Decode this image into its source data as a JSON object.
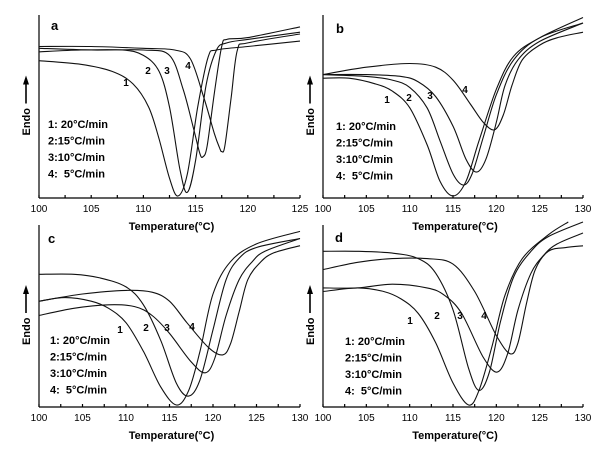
{
  "chart_data": [
    {
      "type": "line",
      "panel": "a",
      "xlabel": "Temperature(°C)",
      "ylabel": "Endo",
      "xlim": [
        100,
        125
      ],
      "xticks": [
        "100",
        "105",
        "110",
        "115",
        "120",
        "125"
      ],
      "ylim": [
        0,
        100
      ],
      "legend": [
        "1: 20°C/min",
        "2:15°C/min",
        "3:10°C/min",
        "4:  5°C/min"
      ],
      "legend_placement": "left",
      "series": [
        {
          "name": "1",
          "label": "1",
          "peak_T": 113.3,
          "x": [
            100,
            104,
            107,
            109,
            110.5,
            111.5,
            112.5,
            113.3,
            114.2,
            115.2,
            116.2,
            117,
            120,
            125
          ],
          "y": [
            76,
            74,
            70,
            63,
            50,
            32,
            10,
            0,
            12,
            50,
            78,
            82,
            84,
            87
          ]
        },
        {
          "name": "2",
          "label": "2",
          "peak_T": 114.2,
          "x": [
            100,
            104,
            108,
            110,
            111.5,
            112.5,
            113.5,
            114.2,
            115,
            116,
            117,
            118,
            120,
            125
          ],
          "y": [
            81,
            82,
            82,
            79,
            70,
            50,
            15,
            2,
            20,
            62,
            82,
            86,
            88,
            92
          ]
        },
        {
          "name": "3",
          "label": "3",
          "peak_T": 115.7,
          "x": [
            100,
            105,
            110,
            112.5,
            113.8,
            114.8,
            115.4,
            115.7,
            116.1,
            116.8,
            117.5,
            118,
            120,
            125
          ],
          "y": [
            83,
            82,
            82,
            79,
            60,
            38,
            24,
            22,
            28,
            58,
            84,
            88,
            89,
            95
          ]
        },
        {
          "name": "4",
          "label": "4",
          "peak_T": 117.5,
          "x": [
            100,
            105,
            110,
            113,
            114.5,
            115.8,
            116.8,
            117.3,
            117.5,
            117.8,
            118.4,
            119,
            120,
            125
          ],
          "y": [
            84,
            84,
            83,
            82,
            77,
            55,
            35,
            27,
            25,
            28,
            55,
            82,
            86,
            91
          ]
        }
      ]
    },
    {
      "type": "line",
      "panel": "b",
      "xlabel": "Temperature(°C)",
      "ylabel": "Endo",
      "xlim": [
        100,
        130
      ],
      "xticks": [
        "100",
        "105",
        "110",
        "115",
        "120",
        "125",
        "130"
      ],
      "ylim": [
        0,
        100
      ],
      "legend": [
        "1: 20°C/min",
        "2:15°C/min",
        "3:10°C/min",
        "4:  5°C/min"
      ],
      "legend_placement": "left",
      "series": [
        {
          "name": "1",
          "label": "1",
          "peak_T": 115,
          "x": [
            100,
            103,
            106,
            108,
            110,
            112,
            113.5,
            115,
            116.5,
            118,
            120,
            122,
            125,
            130
          ],
          "y": [
            64,
            64,
            61,
            57,
            48,
            28,
            8,
            0,
            8,
            30,
            58,
            76,
            86,
            97
          ]
        },
        {
          "name": "2",
          "label": "2",
          "peak_T": 116.2,
          "x": [
            100,
            105,
            108,
            110,
            112,
            113.5,
            115,
            116.2,
            117.2,
            118.5,
            120,
            122,
            125,
            130
          ],
          "y": [
            66,
            65,
            63,
            59,
            48,
            30,
            12,
            6,
            12,
            32,
            55,
            74,
            86,
            94
          ]
        },
        {
          "name": "3",
          "label": "3",
          "peak_T": 117.7,
          "x": [
            100,
            105,
            109,
            111,
            113,
            115,
            116.5,
            117.7,
            118.8,
            120,
            121,
            122.5,
            125,
            130
          ],
          "y": [
            66,
            66,
            65,
            62,
            54,
            38,
            20,
            13,
            20,
            40,
            60,
            74,
            84,
            94
          ]
        },
        {
          "name": "4",
          "label": "4",
          "peak_T": 119.8,
          "x": [
            100,
            105,
            110,
            113,
            115,
            117,
            118.5,
            119.8,
            120.8,
            121.8,
            123,
            125,
            127,
            130
          ],
          "y": [
            66,
            70,
            72,
            70,
            63,
            50,
            40,
            36,
            44,
            60,
            74,
            82,
            86,
            89
          ]
        }
      ]
    },
    {
      "type": "line",
      "panel": "c",
      "xlabel": "Temperature(°C)",
      "ylabel": "Endo",
      "xlim": [
        100,
        130
      ],
      "xticks": [
        "100",
        "105",
        "110",
        "115",
        "120",
        "125",
        "130"
      ],
      "ylim": [
        0,
        100
      ],
      "legend": [
        "1: 20°C/min",
        "2:15°C/min",
        "3:10°C/min",
        "4:  5°C/min"
      ],
      "legend_placement": "left",
      "series": [
        {
          "name": "1",
          "label": "1",
          "peak_T": 115.8,
          "x": [
            100,
            103,
            106,
            108,
            110,
            112,
            114,
            115.8,
            117.2,
            118.5,
            120,
            122,
            125,
            130
          ],
          "y": [
            58,
            60,
            58,
            54,
            46,
            30,
            10,
            0,
            8,
            30,
            62,
            80,
            90,
            97
          ]
        },
        {
          "name": "2",
          "label": "2",
          "peak_T": 117.2,
          "x": [
            100,
            104,
            107,
            110,
            112,
            114,
            115.8,
            117.2,
            118.5,
            120,
            121.5,
            123,
            125,
            130
          ],
          "y": [
            73,
            73,
            71,
            66,
            56,
            36,
            12,
            5,
            14,
            42,
            70,
            82,
            88,
            93
          ]
        },
        {
          "name": "3",
          "label": "3",
          "peak_T": 119.1,
          "x": [
            100,
            104,
            108,
            111,
            113,
            115,
            117.5,
            119.1,
            120.2,
            121.5,
            123,
            124.5,
            126,
            130
          ],
          "y": [
            50,
            54,
            56,
            55,
            50,
            40,
            24,
            18,
            26,
            50,
            70,
            80,
            86,
            93
          ]
        },
        {
          "name": "4",
          "label": "4",
          "peak_T": 121.1,
          "x": [
            100,
            105,
            110,
            113,
            115,
            117,
            119.5,
            121.1,
            122,
            123,
            124,
            125.5,
            127,
            130
          ],
          "y": [
            58,
            62,
            64,
            63,
            58,
            46,
            32,
            28,
            34,
            52,
            70,
            80,
            85,
            89
          ]
        }
      ]
    },
    {
      "type": "line",
      "panel": "d",
      "xlabel": "Temperature(°C)",
      "ylabel": "Endo",
      "xlim": [
        100,
        130
      ],
      "xticks": [
        "100",
        "105",
        "110",
        "115",
        "120",
        "125",
        "130"
      ],
      "ylim": [
        0,
        100
      ],
      "legend": [
        "1: 20°C/min",
        "2:15°C/min",
        "3:10°C/min",
        "4:  5°C/min"
      ],
      "legend_placement": "left",
      "series": [
        {
          "name": "1",
          "label": "1",
          "peak_T": 116.8,
          "x": [
            100,
            104,
            107,
            109,
            111,
            113,
            115,
            116.8,
            118,
            119.5,
            121,
            123,
            126,
            128.3
          ],
          "y": [
            62,
            64,
            62,
            58,
            50,
            34,
            12,
            0,
            8,
            32,
            60,
            80,
            93,
            100
          ]
        },
        {
          "name": "2",
          "label": "2",
          "peak_T": 118,
          "x": [
            100,
            104,
            108,
            111,
            113,
            115,
            116.8,
            118,
            119.2,
            120.5,
            122,
            124,
            126,
            130
          ],
          "y": [
            84,
            84,
            83,
            80,
            72,
            52,
            20,
            8,
            18,
            46,
            70,
            84,
            92,
            100
          ]
        },
        {
          "name": "3",
          "label": "3",
          "peak_T": 120.1,
          "x": [
            100,
            104,
            108,
            112,
            114,
            116,
            118.5,
            120.1,
            121.3,
            122.5,
            124,
            125.5,
            127,
            130
          ],
          "y": [
            64,
            64,
            66,
            64,
            60,
            50,
            26,
            18,
            28,
            52,
            72,
            82,
            88,
            94
          ]
        },
        {
          "name": "4",
          "label": "4",
          "peak_T": 121.6,
          "x": [
            100,
            104,
            108,
            112,
            115,
            117.5,
            120,
            121.6,
            122.5,
            123.5,
            124.5,
            126,
            128,
            130
          ],
          "y": [
            74,
            78,
            80,
            80,
            77,
            62,
            38,
            28,
            34,
            56,
            74,
            84,
            86,
            87
          ]
        }
      ]
    }
  ]
}
